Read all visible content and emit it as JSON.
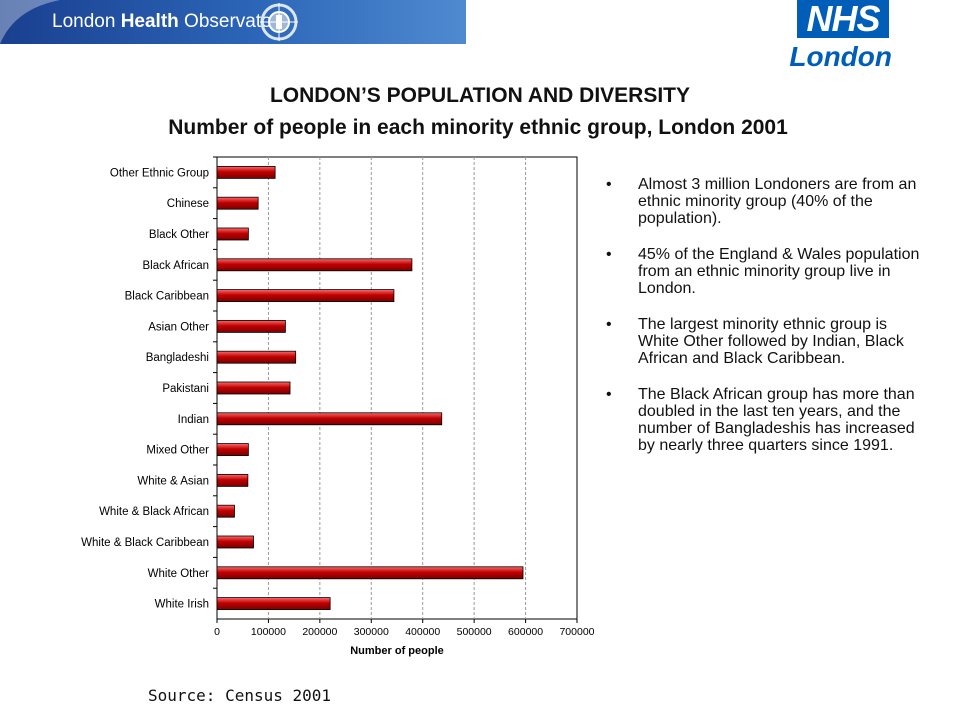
{
  "header": {
    "banner_text_regular": "London ",
    "banner_text_bold": "Health",
    "banner_text_end": " Observatory",
    "nhs_mark": "NHS",
    "nhs_region": "London",
    "banner_color": "#2c66b8",
    "nhs_color": "#005eb8"
  },
  "titles": {
    "main": "LONDON’S POPULATION AND DIVERSITY",
    "sub": "Number of people in each minority ethnic group, London 2001"
  },
  "bullets": [
    "Almost 3 million Londoners are from an ethnic minority group (40% of the population).",
    "45% of the England & Wales population from an ethnic minority group live in London.",
    "The largest minority ethnic group is White Other followed by Indian, Black African and Black Caribbean.",
    "The Black African group has more than doubled in the last ten years, and the number of Bangladeshis has increased by nearly three quarters since 1991."
  ],
  "source": "Source: Census 2001",
  "chart_data": {
    "type": "bar",
    "orientation": "horizontal",
    "categories": [
      "Other Ethnic Group",
      "Chinese",
      "Black Other",
      "Black African",
      "Black Caribbean",
      "Asian Other",
      "Bangladeshi",
      "Pakistani",
      "Indian",
      "Mixed Other",
      "White & Asian",
      "White & Black African",
      "White & Black Caribbean",
      "White Other",
      "White Irish"
    ],
    "values": [
      113000,
      80000,
      61000,
      379000,
      344000,
      133000,
      153000,
      142000,
      437000,
      61000,
      60000,
      34000,
      71000,
      595000,
      220000
    ],
    "xlabel": "Number of people",
    "ylabel": "",
    "xlim": [
      0,
      700000
    ],
    "xticks": [
      "0",
      "100000",
      "200000",
      "300000",
      "400000",
      "500000",
      "600000",
      "700000"
    ],
    "grid": "vertical dashed",
    "bar_color": "#c00000",
    "legend": "none"
  }
}
